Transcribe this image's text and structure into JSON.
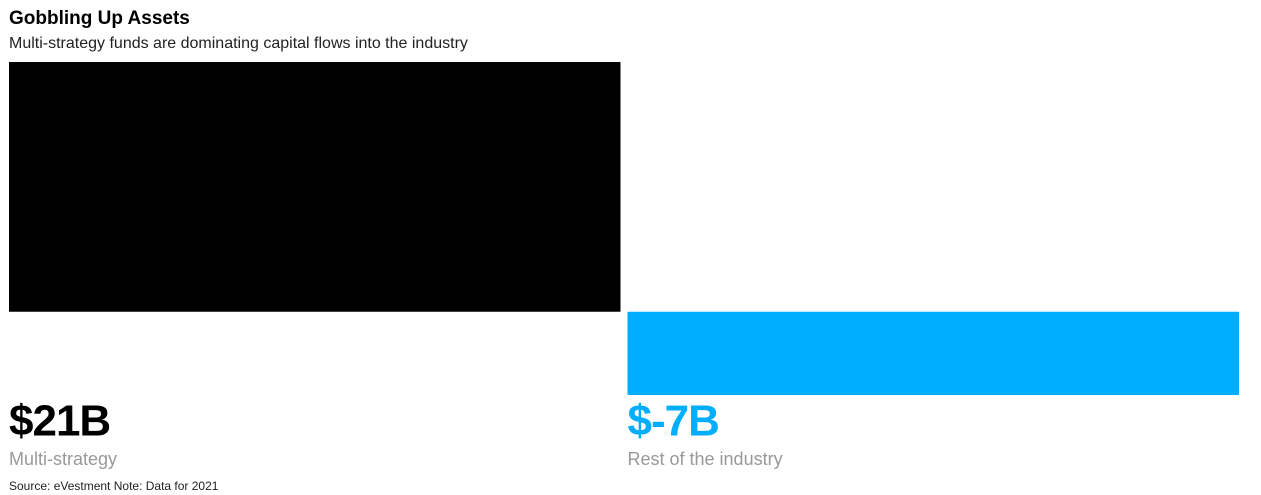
{
  "chart_data": {
    "type": "bar",
    "title": "Gobbling Up Assets",
    "subtitle": "Multi-strategy funds are dominating capital flows into the industry",
    "categories": [
      "Multi-strategy",
      "Rest of the industry"
    ],
    "values": [
      21,
      -7
    ],
    "value_labels": [
      "$21B",
      "$-7B"
    ],
    "colors": [
      "#000000",
      "#00aeff"
    ],
    "ylim": [
      -7,
      21
    ],
    "source": "Source: eVestment Note: Data for 2021"
  }
}
